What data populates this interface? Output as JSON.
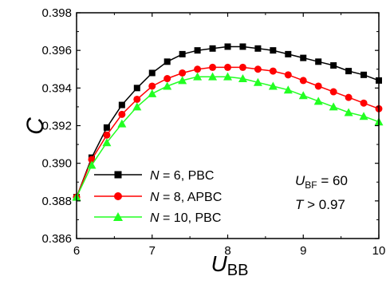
{
  "chart_data": {
    "type": "line",
    "xlabel": "U",
    "xlabel_sub": "BB",
    "ylabel": "C",
    "xlim": [
      6,
      10
    ],
    "ylim": [
      0.386,
      0.398
    ],
    "x_ticks": [
      "6",
      "7",
      "8",
      "9",
      "10"
    ],
    "y_ticks": [
      "0.386",
      "0.388",
      "0.390",
      "0.392",
      "0.394",
      "0.396",
      "0.398"
    ],
    "x_tick_values": [
      6,
      7,
      8,
      9,
      10
    ],
    "y_tick_values": [
      0.386,
      0.388,
      0.39,
      0.392,
      0.394,
      0.396,
      0.398
    ],
    "x": [
      6.0,
      6.2,
      6.4,
      6.6,
      6.8,
      7.0,
      7.2,
      7.4,
      7.6,
      7.8,
      8.0,
      8.2,
      8.4,
      8.6,
      8.8,
      9.0,
      9.2,
      9.4,
      9.6,
      9.8,
      10.0
    ],
    "series": [
      {
        "name_italic": "N",
        "name_rest": " = 6, PBC",
        "color": "#000000",
        "marker": "square",
        "values": [
          0.3882,
          0.3903,
          0.3919,
          0.3931,
          0.394,
          0.3948,
          0.3954,
          0.3958,
          0.396,
          0.3961,
          0.3962,
          0.3962,
          0.3961,
          0.396,
          0.3958,
          0.3956,
          0.3954,
          0.3952,
          0.3949,
          0.3947,
          0.3944
        ]
      },
      {
        "name_italic": "N",
        "name_rest": " = 8, APBC",
        "color": "#ff0000",
        "marker": "circle",
        "values": [
          0.3882,
          0.3902,
          0.3915,
          0.3926,
          0.3934,
          0.3941,
          0.3945,
          0.3948,
          0.395,
          0.3951,
          0.3951,
          0.3951,
          0.395,
          0.3949,
          0.3947,
          0.3944,
          0.3941,
          0.3938,
          0.3935,
          0.3932,
          0.3929
        ]
      },
      {
        "name_italic": "N",
        "name_rest": " = 10, PBC",
        "color": "#22ff22",
        "marker": "triangle",
        "values": [
          0.3882,
          0.3899,
          0.3911,
          0.3921,
          0.393,
          0.3937,
          0.3941,
          0.3944,
          0.3946,
          0.3946,
          0.3946,
          0.3945,
          0.3943,
          0.3941,
          0.3939,
          0.3936,
          0.3933,
          0.393,
          0.3927,
          0.3925,
          0.3922
        ]
      }
    ],
    "annotations": [
      {
        "italic": "U",
        "sub": "BF",
        "rest": " = 60"
      },
      {
        "italic": "T",
        "sub": "",
        "rest": " > 0.97"
      }
    ],
    "legend_position": "lower-left",
    "grid": false
  }
}
